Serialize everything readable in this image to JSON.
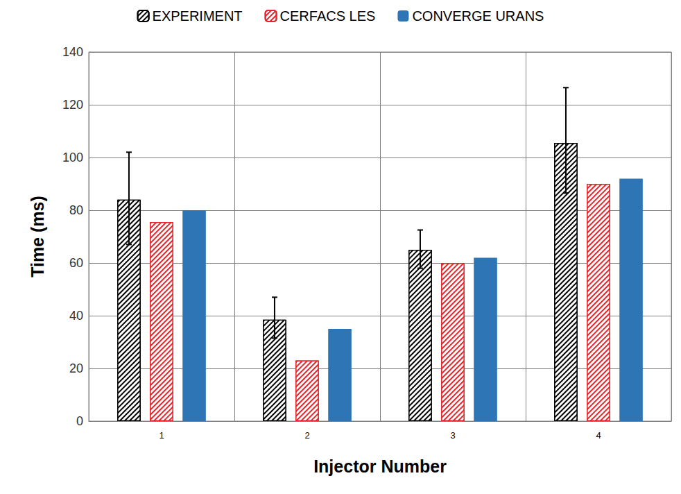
{
  "chart_data": {
    "type": "bar",
    "x_label": "Injector Number",
    "y_label": "Time (ms)",
    "categories": [
      "1",
      "2",
      "3",
      "4"
    ],
    "series": [
      {
        "name": "EXPERIMENT",
        "color": "#000000",
        "marker": "hatched",
        "values": [
          84,
          38.5,
          65,
          105.5
        ],
        "error_low": [
          67,
          31.5,
          58,
          86.5
        ],
        "error_high": [
          102,
          47,
          72.5,
          126.5
        ]
      },
      {
        "name": "CERFACS LES",
        "color": "#e8232a",
        "marker": "hatched",
        "values": [
          75.5,
          23,
          60,
          90
        ]
      },
      {
        "name": "CONVERGE URANS",
        "color": "#2e75b6",
        "marker": "solid",
        "values": [
          80,
          35,
          62,
          92
        ]
      }
    ],
    "ylim": [
      0,
      140
    ],
    "yticks": [
      0,
      20,
      40,
      60,
      80,
      100,
      120,
      140
    ],
    "grid": true,
    "legend": "top"
  }
}
